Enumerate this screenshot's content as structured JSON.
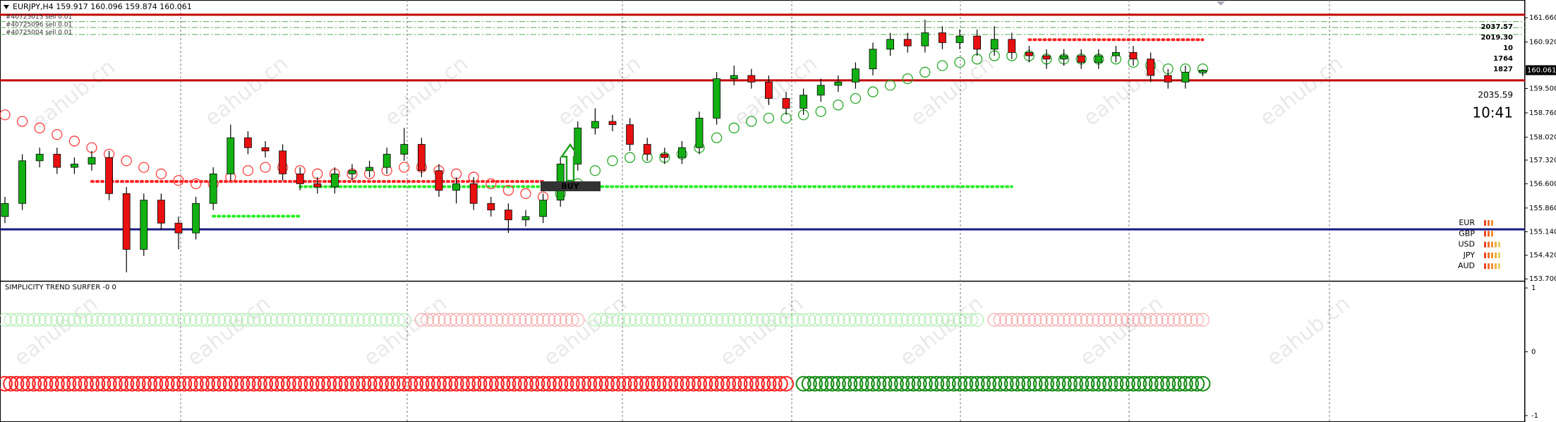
{
  "chart_data": {
    "type": "candlestick",
    "title": "EURJPY,H4 159.917 160.096 159.874 160.061",
    "categories": [
      null,
      null,
      null,
      null,
      null,
      null,
      null,
      null,
      null,
      null,
      null,
      null,
      null,
      null,
      null,
      null,
      null,
      null,
      null,
      null,
      null,
      null,
      null,
      null,
      null,
      null,
      null,
      null,
      null,
      null,
      null,
      null,
      null,
      null,
      null,
      null,
      null,
      null,
      null,
      null,
      null,
      null,
      null,
      null,
      null,
      null,
      null,
      null,
      null,
      null,
      null,
      null,
      null,
      null,
      null,
      null,
      null,
      null,
      null,
      null,
      null,
      null,
      null,
      null,
      null,
      null,
      null,
      null,
      null,
      null
    ],
    "open": [
      155.6,
      156.0,
      157.3,
      157.5,
      157.1,
      157.2,
      157.4,
      156.3,
      154.6,
      156.1,
      155.4,
      155.1,
      156.0,
      156.9,
      158.0,
      157.7,
      157.6,
      156.9,
      156.6,
      156.5,
      156.9,
      157.0,
      157.1,
      157.5,
      157.8,
      157.0,
      156.4,
      156.6,
      156.0,
      155.8,
      155.5,
      155.6,
      156.1,
      157.2,
      158.3,
      158.5,
      158.4,
      157.8,
      157.5,
      157.4,
      157.7,
      158.6,
      159.8,
      159.9,
      159.7,
      159.2,
      158.9,
      159.3,
      159.6,
      159.7,
      160.1,
      160.7,
      161.0,
      160.8,
      161.2,
      160.9,
      161.1,
      160.7,
      161.0,
      160.6,
      160.5,
      160.4,
      160.5,
      160.3,
      160.5,
      160.6,
      160.4,
      159.9,
      159.7,
      160.0
    ],
    "high": [
      156.2,
      157.5,
      157.7,
      157.7,
      157.4,
      157.6,
      157.6,
      156.5,
      156.3,
      156.3,
      155.6,
      156.2,
      157.1,
      158.4,
      158.2,
      157.9,
      157.8,
      157.1,
      156.8,
      157.1,
      157.2,
      157.3,
      157.7,
      158.3,
      158.0,
      157.2,
      156.8,
      156.8,
      156.2,
      156.0,
      155.8,
      156.3,
      157.4,
      158.5,
      158.9,
      158.7,
      158.6,
      158.0,
      157.7,
      157.9,
      158.8,
      160.0,
      160.2,
      160.1,
      159.9,
      159.4,
      159.5,
      159.8,
      159.9,
      160.3,
      160.9,
      161.2,
      161.2,
      161.6,
      161.4,
      161.3,
      161.3,
      161.4,
      161.2,
      160.8,
      160.7,
      160.7,
      160.7,
      160.7,
      160.8,
      160.8,
      160.6,
      160.1,
      160.2,
      160.096
    ],
    "low": [
      155.4,
      155.8,
      157.1,
      156.9,
      156.9,
      157.0,
      156.1,
      153.9,
      154.4,
      155.2,
      154.6,
      154.9,
      155.8,
      156.7,
      157.5,
      157.4,
      156.7,
      156.4,
      156.3,
      156.3,
      156.7,
      156.8,
      156.9,
      157.3,
      156.8,
      156.2,
      156.0,
      155.8,
      155.6,
      155.1,
      155.3,
      155.4,
      155.9,
      157.0,
      158.1,
      158.2,
      157.6,
      157.3,
      157.2,
      157.2,
      157.5,
      158.4,
      159.6,
      159.5,
      159.0,
      158.7,
      158.7,
      159.1,
      159.4,
      159.5,
      159.9,
      160.5,
      160.6,
      160.6,
      160.7,
      160.7,
      160.5,
      160.5,
      160.4,
      160.3,
      160.1,
      160.2,
      160.1,
      160.1,
      160.3,
      160.2,
      159.7,
      159.5,
      159.5,
      159.874
    ],
    "close": [
      156.0,
      157.3,
      157.5,
      157.1,
      157.2,
      157.4,
      156.3,
      154.6,
      156.1,
      155.4,
      155.1,
      156.0,
      156.9,
      158.0,
      157.7,
      157.6,
      156.9,
      156.6,
      156.5,
      156.9,
      157.0,
      157.1,
      157.5,
      157.8,
      157.0,
      156.4,
      156.6,
      156.0,
      155.8,
      155.5,
      155.6,
      156.1,
      157.2,
      158.3,
      158.5,
      158.4,
      157.8,
      157.5,
      157.4,
      157.7,
      158.6,
      159.8,
      159.9,
      159.7,
      159.2,
      158.9,
      159.3,
      159.6,
      159.7,
      160.1,
      160.7,
      161.0,
      160.8,
      161.2,
      160.9,
      161.1,
      160.7,
      161.0,
      160.6,
      160.5,
      160.4,
      160.5,
      160.3,
      160.5,
      160.6,
      160.4,
      159.9,
      159.7,
      160.0,
      160.061
    ],
    "up_color": "#12b012",
    "down_color": "#e81010",
    "ylim": [
      153.64,
      162.2
    ],
    "yticks": [
      {
        "value": 161.66,
        "label": "161.660"
      },
      {
        "value": 160.92,
        "label": "160.920"
      },
      {
        "value": 159.5,
        "label": "159.500"
      },
      {
        "value": 158.76,
        "label": "158.760"
      },
      {
        "value": 158.02,
        "label": "158.020"
      },
      {
        "value": 157.32,
        "label": "157.320"
      },
      {
        "value": 156.6,
        "label": "156.600"
      },
      {
        "value": 155.86,
        "label": "155.860"
      },
      {
        "value": 155.14,
        "label": "155.140"
      },
      {
        "value": 154.42,
        "label": "154.420"
      },
      {
        "value": 153.7,
        "label": "153.700"
      }
    ],
    "grid": false,
    "overlays": [
      {
        "color": "#ff4040",
        "values": [
          158.7,
          158.5,
          158.3,
          158.1,
          157.9,
          157.7,
          157.5,
          157.3,
          157.1,
          156.9,
          156.7,
          156.6,
          156.6,
          156.8,
          157.0,
          157.1,
          157.1,
          157.0,
          156.9,
          156.9,
          156.9,
          156.9,
          157.0,
          157.1,
          157.1,
          157.0,
          156.9,
          156.8,
          156.6,
          156.4,
          156.3,
          156.2,
          null,
          null,
          null,
          null,
          null,
          null,
          null,
          null,
          null,
          null,
          null,
          null,
          null,
          null,
          null,
          null,
          null,
          null,
          null,
          null,
          null,
          null,
          null,
          null,
          null,
          null,
          null,
          null,
          null,
          null,
          null,
          null,
          null,
          null,
          null,
          null,
          null,
          null
        ]
      },
      {
        "color": "#28a828",
        "values": [
          null,
          null,
          null,
          null,
          null,
          null,
          null,
          null,
          null,
          null,
          null,
          null,
          null,
          null,
          null,
          null,
          null,
          null,
          null,
          null,
          null,
          null,
          null,
          null,
          null,
          null,
          null,
          null,
          null,
          null,
          null,
          null,
          156.3,
          156.6,
          157.0,
          157.3,
          157.4,
          157.4,
          157.4,
          157.5,
          157.7,
          158.0,
          158.3,
          158.5,
          158.6,
          158.6,
          158.7,
          158.8,
          159.0,
          159.2,
          159.4,
          159.6,
          159.8,
          160.0,
          160.2,
          160.3,
          160.4,
          160.5,
          160.5,
          160.5,
          160.4,
          160.4,
          160.4,
          160.4,
          160.4,
          160.3,
          160.2,
          160.1,
          160.1,
          160.1
        ]
      }
    ],
    "levels": [
      {
        "value": 161.75,
        "color": "#c00000",
        "style": "solid"
      },
      {
        "value": 161.54,
        "color": "#55aa55",
        "style": "dashdot"
      },
      {
        "value": 161.36,
        "color": "#55aa55",
        "style": "dashdot"
      },
      {
        "value": 161.15,
        "color": "#55aa55",
        "style": "dashdot"
      },
      {
        "value": 159.75,
        "color": "#c00000",
        "style": "solid"
      },
      {
        "value": 155.21,
        "color": "#1a1a80",
        "style": "solid"
      },
      {
        "value": 156.67,
        "color": "#ff2020",
        "style": "dotted",
        "start": 5,
        "end": 31
      },
      {
        "value": 156.51,
        "color": "#22ee22",
        "style": "dotted",
        "start": 17,
        "end": 58
      },
      {
        "value": 155.61,
        "color": "#22ee22",
        "style": "dotted",
        "start": 12,
        "end": 17
      },
      {
        "value": 160.99,
        "color": "#ff2020",
        "style": "dotted",
        "start": 59,
        "end": 69
      }
    ],
    "orders": [
      "#40725015 sell 0.01",
      "#40725096 sell 0.01",
      "#40725004 sell 0.01"
    ],
    "signal": "BUY",
    "watermark": "eahub.cn",
    "info": [
      "2037.57",
      "2019.30",
      "10",
      "1764",
      "1827"
    ],
    "balance": "2035.59",
    "clock": "10:41",
    "currencies": [
      "EUR",
      "GBP",
      "USD",
      "JPY",
      "AUD"
    ],
    "strength": [
      3,
      3,
      5,
      5,
      5
    ],
    "indicator": {
      "title": "SIMPLICITY TREND SURFER -0 0",
      "ylim": [
        -1.1,
        1.1
      ],
      "yticks": [
        1,
        0,
        -1
      ],
      "segments": [
        {
          "value": 0.5,
          "color": "#b4ecb4",
          "start": 0,
          "end": 23
        },
        {
          "value": 0.5,
          "color": "#f4aaaa",
          "start": 24,
          "end": 33
        },
        {
          "value": 0.5,
          "color": "#b4ecb4",
          "start": 34,
          "end": 56
        },
        {
          "value": 0.5,
          "color": "#f4aaaa",
          "start": 57,
          "end": 69
        },
        {
          "value": -0.5,
          "color": "#ff2020",
          "start": 0,
          "end": 45
        },
        {
          "value": -0.5,
          "color": "#138a13",
          "start": 46,
          "end": 69
        }
      ]
    }
  }
}
